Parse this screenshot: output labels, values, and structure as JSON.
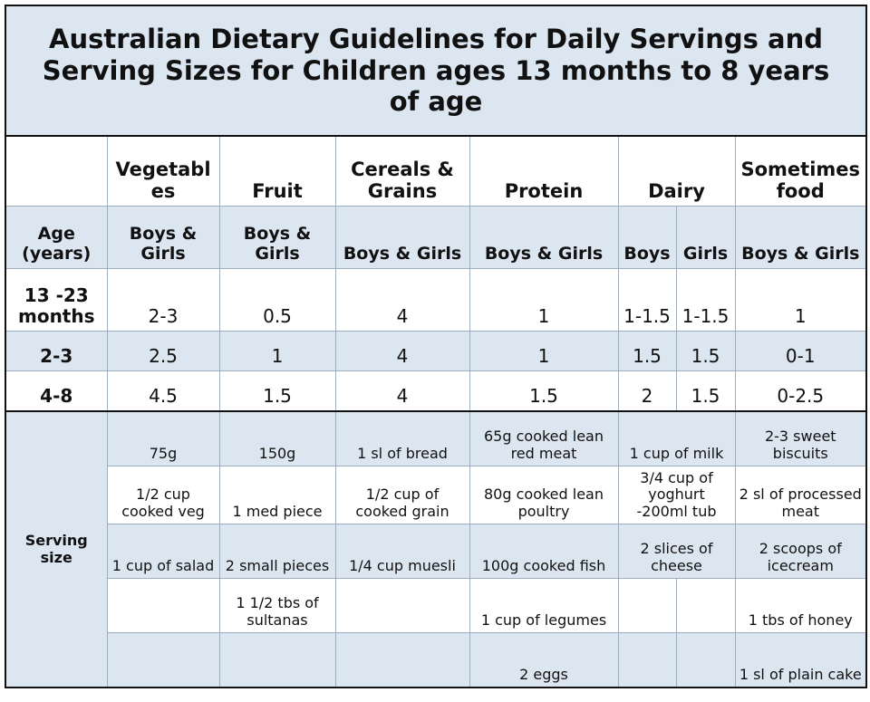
{
  "title": "Australian Dietary Guidelines for Daily Servings and Serving Sizes for Children ages 13 months to 8 years of age",
  "header": {
    "blank": "",
    "vegetables": "Vegetables",
    "fruit": "Fruit",
    "cereals": "Cereals & Grains",
    "protein": "Protein",
    "dairy": "Dairy",
    "sometimes": "Sometimes food"
  },
  "subheader": {
    "age": "Age (years)",
    "vegetables": "Boys & Girls",
    "fruit": "Boys & Girls",
    "cereals": "Boys & Girls",
    "protein": "Boys & Girls",
    "dairy_boys": "Boys",
    "dairy_girls": "Girls",
    "sometimes": "Boys & Girls"
  },
  "age_rows": [
    {
      "age": "13 -23 months",
      "vegetables": "2-3",
      "fruit": "0.5",
      "cereals": "4",
      "protein": "1",
      "dairy_boys": "1-1.5",
      "dairy_girls": "1-1.5",
      "sometimes": "1"
    },
    {
      "age": "2-3",
      "vegetables": "2.5",
      "fruit": "1",
      "cereals": "4",
      "protein": "1",
      "dairy_boys": "1.5",
      "dairy_girls": "1.5",
      "sometimes": "0-1"
    },
    {
      "age": "4-8",
      "vegetables": "4.5",
      "fruit": "1.5",
      "cereals": "4",
      "protein": "1.5",
      "dairy_boys": "2",
      "dairy_girls": "1.5",
      "sometimes": "0-2.5"
    }
  ],
  "serving_size_label": "Serving size",
  "serving_rows": [
    {
      "vegetables": "75g",
      "fruit": "150g",
      "cereals": "1 sl of bread",
      "protein": "65g cooked lean red meat",
      "dairy": "1 cup of milk",
      "sometimes": "2-3 sweet biscuits"
    },
    {
      "vegetables": "1/2 cup cooked veg",
      "fruit": "1 med piece",
      "cereals": "1/2 cup of cooked grain",
      "protein": "80g cooked lean poultry",
      "dairy": "3/4 cup of yoghurt -200ml tub",
      "sometimes": "2 sl of processed meat"
    },
    {
      "vegetables": "1 cup of salad",
      "fruit": "2 small pieces",
      "cereals": "1/4 cup muesli",
      "protein": "100g cooked fish",
      "dairy": "2 slices of cheese",
      "sometimes": "2 scoops of icecream"
    },
    {
      "vegetables": "",
      "fruit": "1 1/2 tbs of sultanas",
      "cereals": "",
      "protein": "1 cup of legumes",
      "dairy_boys": "",
      "dairy_girls": "",
      "sometimes": "1 tbs of honey"
    },
    {
      "vegetables": "",
      "fruit": "",
      "cereals": "",
      "protein": "2 eggs",
      "dairy_boys": "",
      "dairy_girls": "",
      "sometimes": "1 sl of plain cake"
    }
  ]
}
